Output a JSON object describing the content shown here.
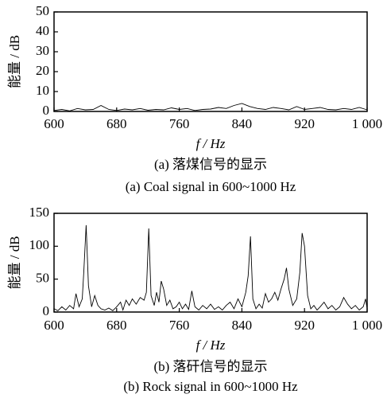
{
  "chart_data": [
    {
      "type": "line",
      "ylabel": "能量 / dB",
      "xlabel": "f / Hz",
      "title": "(a) 落煤信号的显示",
      "subtitle": "(a) Coal signal in 600~1000 Hz",
      "x": [
        600,
        610,
        620,
        630,
        640,
        650,
        660,
        670,
        680,
        690,
        700,
        710,
        720,
        730,
        740,
        750,
        760,
        770,
        780,
        790,
        800,
        810,
        820,
        830,
        840,
        850,
        860,
        870,
        880,
        890,
        900,
        910,
        920,
        930,
        940,
        950,
        960,
        970,
        980,
        990,
        1000
      ],
      "values": [
        0.5,
        1,
        0.3,
        1.5,
        0.8,
        1,
        3,
        1,
        0.5,
        1.2,
        0.8,
        1.5,
        0.6,
        1,
        0.8,
        1.8,
        1,
        1.5,
        0.5,
        1,
        1.2,
        2,
        1.5,
        3,
        4,
        2.5,
        1.5,
        1,
        2,
        1.5,
        0.8,
        2.5,
        1,
        1.5,
        2,
        1,
        0.8,
        1.5,
        1,
        2,
        0.8
      ],
      "color": "#000000",
      "xlim": [
        600,
        1000
      ],
      "xticks": [
        600,
        680,
        760,
        840,
        920,
        {
          "value": 1000,
          "label": "1 000"
        }
      ],
      "ylim": [
        0,
        50
      ],
      "yticks": [
        0,
        10,
        20,
        30,
        40,
        50
      ]
    },
    {
      "type": "line",
      "ylabel": "能量 / dB",
      "xlabel": "f / Hz",
      "title": "(b) 落矸信号的显示",
      "subtitle": "(b) Rock signal in 600~1000 Hz",
      "x": [
        600,
        605,
        610,
        615,
        620,
        625,
        628,
        632,
        636,
        638,
        641,
        644,
        648,
        652,
        656,
        660,
        665,
        670,
        675,
        680,
        685,
        688,
        692,
        696,
        700,
        705,
        710,
        715,
        718,
        721,
        724,
        728,
        731,
        734,
        737,
        740,
        744,
        748,
        752,
        756,
        760,
        764,
        768,
        772,
        776,
        780,
        785,
        790,
        795,
        800,
        805,
        810,
        815,
        820,
        825,
        830,
        835,
        840,
        845,
        848,
        851,
        854,
        858,
        862,
        866,
        870,
        874,
        878,
        882,
        886,
        890,
        894,
        897,
        900,
        905,
        910,
        914,
        917,
        920,
        924,
        928,
        932,
        936,
        940,
        945,
        950,
        955,
        960,
        965,
        970,
        975,
        980,
        985,
        990,
        995,
        998,
        1000
      ],
      "values": [
        5,
        2,
        8,
        3,
        10,
        5,
        28,
        8,
        20,
        60,
        132,
        40,
        8,
        25,
        10,
        5,
        3,
        6,
        2,
        8,
        15,
        3,
        18,
        10,
        20,
        12,
        22,
        18,
        30,
        127,
        25,
        10,
        30,
        15,
        47,
        35,
        10,
        18,
        5,
        8,
        15,
        5,
        12,
        4,
        32,
        8,
        3,
        10,
        5,
        12,
        4,
        8,
        3,
        10,
        15,
        5,
        20,
        8,
        30,
        55,
        115,
        20,
        5,
        12,
        6,
        28,
        15,
        20,
        30,
        18,
        35,
        50,
        67,
        35,
        10,
        20,
        60,
        120,
        100,
        25,
        5,
        10,
        3,
        8,
        15,
        5,
        10,
        3,
        8,
        22,
        12,
        5,
        10,
        3,
        8,
        20,
        5
      ],
      "color": "#000000",
      "xlim": [
        600,
        1000
      ],
      "xticks": [
        600,
        680,
        760,
        840,
        920,
        {
          "value": 1000,
          "label": "1 000"
        }
      ],
      "ylim": [
        0,
        150
      ],
      "yticks": [
        0,
        50,
        100,
        150
      ]
    }
  ]
}
